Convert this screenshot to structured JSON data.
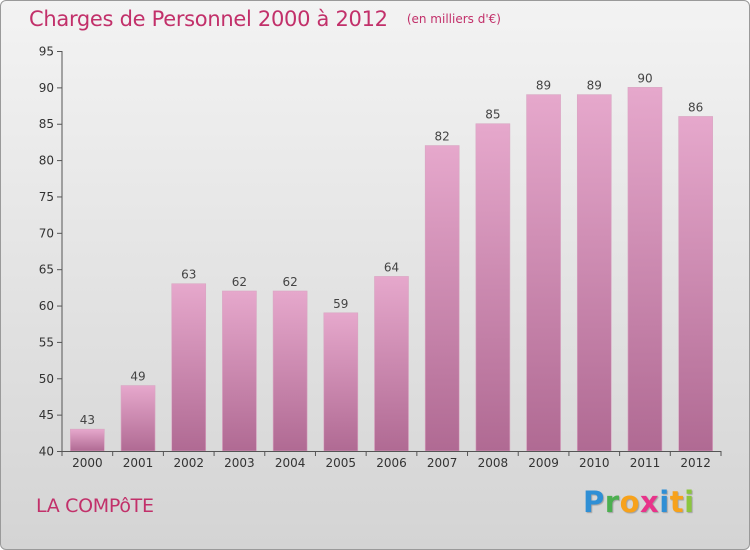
{
  "chart_data": {
    "type": "bar",
    "title": "Charges de Personnel 2000 à 2012",
    "subtitle": "(en milliers d'€)",
    "categories": [
      "2000",
      "2001",
      "2002",
      "2003",
      "2004",
      "2005",
      "2006",
      "2007",
      "2008",
      "2009",
      "2010",
      "2011",
      "2012"
    ],
    "values": [
      43,
      49,
      63,
      62,
      62,
      59,
      64,
      82,
      85,
      89,
      89,
      90,
      86
    ],
    "ylim": [
      40,
      95
    ],
    "yticks": [
      40,
      45,
      50,
      55,
      60,
      65,
      70,
      75,
      80,
      85,
      90,
      95
    ],
    "xlabel": "",
    "ylabel": "",
    "grid": false,
    "colors": {
      "bar_top": "#e6a8cc",
      "bar_bottom": "#b06a93",
      "title": "#c2306a"
    }
  },
  "footer": {
    "place_name": "LA COMPôTE",
    "brand_letters": [
      {
        "ch": "P",
        "color": "#2f8fd5"
      },
      {
        "ch": "r",
        "color": "#4caf50"
      },
      {
        "ch": "o",
        "color": "#f7a21b"
      },
      {
        "ch": "x",
        "color": "#e8338a"
      },
      {
        "ch": "i",
        "color": "#2f8fd5"
      },
      {
        "ch": "t",
        "color": "#f7a21b"
      },
      {
        "ch": "i",
        "color": "#8cc63f"
      }
    ]
  }
}
